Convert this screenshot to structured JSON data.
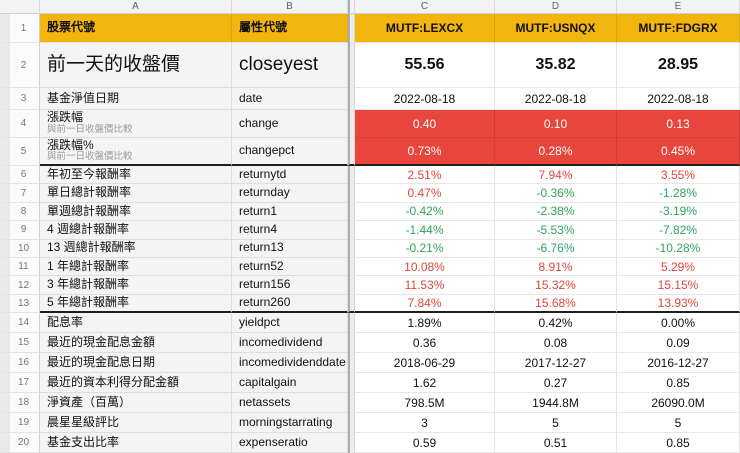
{
  "sheet": {
    "column_letters": [
      "A",
      "B",
      "C",
      "D",
      "E"
    ],
    "visible_row_numbers": "1-20"
  },
  "colors": {
    "header_fill": "#f2b50e",
    "highlight_fill": "#e8463c",
    "up_text": "#e2453b",
    "down_text": "#2fa45c"
  },
  "header_row": {
    "row_num": "1",
    "a_label": "股票代號",
    "b_label": "屬性代號",
    "tickers": [
      "MUTF:LEXCX",
      "MUTF:USNQX",
      "MUTF:FDGRX"
    ]
  },
  "rows": [
    {
      "num": "2",
      "label": "前一天的收盤價",
      "attr": "closeyest",
      "values": [
        "55.56",
        "35.82",
        "28.95"
      ]
    },
    {
      "num": "3",
      "label": "基金淨值日期",
      "attr": "date",
      "values": [
        "2022-08-18",
        "2022-08-18",
        "2022-08-18"
      ]
    },
    {
      "num": "4",
      "label": "漲跌幅",
      "sub": "與前一日收盤價比較",
      "attr": "change",
      "values": [
        "0.40",
        "0.10",
        "0.13"
      ],
      "fill": "red"
    },
    {
      "num": "5",
      "label": "漲跌幅%",
      "sub": "與前一日收盤價比較",
      "attr": "changepct",
      "values": [
        "0.73%",
        "0.28%",
        "0.45%"
      ],
      "fill": "red",
      "thick_bottom": true
    },
    {
      "num": "6",
      "label": "年初至今報酬率",
      "attr": "returnytd",
      "values": [
        "2.51%",
        "7.94%",
        "3.55%"
      ],
      "trend": [
        "up",
        "up",
        "up"
      ]
    },
    {
      "num": "7",
      "label": "單日總計報酬率",
      "attr": "returnday",
      "values": [
        "0.47%",
        "-0.36%",
        "-1.28%"
      ],
      "trend": [
        "up",
        "down",
        "down"
      ]
    },
    {
      "num": "8",
      "label": "單週總計報酬率",
      "attr": "return1",
      "values": [
        "-0.42%",
        "-2.38%",
        "-3.19%"
      ],
      "trend": [
        "down",
        "down",
        "down"
      ]
    },
    {
      "num": "9",
      "label": "4 週總計報酬率",
      "attr": "return4",
      "values": [
        "-1.44%",
        "-5.53%",
        "-7.82%"
      ],
      "trend": [
        "down",
        "down",
        "down"
      ]
    },
    {
      "num": "10",
      "label": "13 週總計報酬率",
      "attr": "return13",
      "values": [
        "-0.21%",
        "-6.76%",
        "-10.28%"
      ],
      "trend": [
        "down",
        "down",
        "down"
      ]
    },
    {
      "num": "11",
      "label": "1 年總計報酬率",
      "attr": "return52",
      "values": [
        "10.08%",
        "8.91%",
        "5.29%"
      ],
      "trend": [
        "up",
        "up",
        "up"
      ]
    },
    {
      "num": "12",
      "label": "3 年總計報酬率",
      "attr": "return156",
      "values": [
        "11.53%",
        "15.32%",
        "15.15%"
      ],
      "trend": [
        "up",
        "up",
        "up"
      ]
    },
    {
      "num": "13",
      "label": "5 年總計報酬率",
      "attr": "return260",
      "values": [
        "7.84%",
        "15.68%",
        "13.93%"
      ],
      "trend": [
        "up",
        "up",
        "up"
      ],
      "thick_bottom": true
    },
    {
      "num": "14",
      "label": "配息率",
      "attr": "yieldpct",
      "values": [
        "1.89%",
        "0.42%",
        "0.00%"
      ]
    },
    {
      "num": "15",
      "label": "最近的現金配息金額",
      "attr": "incomedividend",
      "values": [
        "0.36",
        "0.08",
        "0.09"
      ]
    },
    {
      "num": "16",
      "label": "最近的現金配息日期",
      "attr": "incomedividenddate",
      "values": [
        "2018-06-29",
        "2017-12-27",
        "2016-12-27"
      ]
    },
    {
      "num": "17",
      "label": "最近的資本利得分配金額",
      "attr": "capitalgain",
      "values": [
        "1.62",
        "0.27",
        "0.85"
      ]
    },
    {
      "num": "18",
      "label": "淨資產（百萬）",
      "attr": "netassets",
      "values": [
        "798.5M",
        "1944.8M",
        "26090.0M"
      ]
    },
    {
      "num": "19",
      "label": "晨星星級評比",
      "attr": "morningstarrating",
      "values": [
        "3",
        "5",
        "5"
      ]
    },
    {
      "num": "20",
      "label": "基金支出比率",
      "attr": "expenseratio",
      "values": [
        "0.59",
        "0.51",
        "0.85"
      ]
    }
  ]
}
